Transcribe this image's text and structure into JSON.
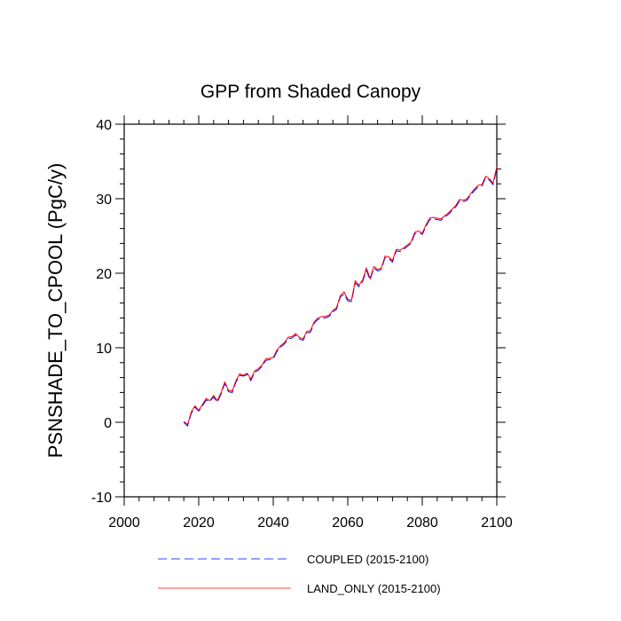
{
  "chart_data": {
    "type": "line",
    "title": "GPP from Shaded Canopy",
    "xlabel": "",
    "ylabel": "PSNSHADE_TO_CPOOL  (PgC/y)",
    "xlim": [
      2000,
      2100
    ],
    "ylim": [
      -10,
      40
    ],
    "xticks": [
      2000,
      2020,
      2040,
      2060,
      2080,
      2100
    ],
    "yticks": [
      -10,
      0,
      10,
      20,
      30,
      40
    ],
    "x": [
      2016,
      2017,
      2018,
      2019,
      2020,
      2021,
      2022,
      2023,
      2024,
      2025,
      2026,
      2027,
      2028,
      2029,
      2030,
      2031,
      2032,
      2033,
      2034,
      2035,
      2036,
      2037,
      2038,
      2039,
      2040,
      2041,
      2042,
      2043,
      2044,
      2045,
      2046,
      2047,
      2048,
      2049,
      2050,
      2051,
      2052,
      2053,
      2054,
      2055,
      2056,
      2057,
      2058,
      2059,
      2060,
      2061,
      2062,
      2063,
      2064,
      2065,
      2066,
      2067,
      2068,
      2069,
      2070,
      2071,
      2072,
      2073,
      2074,
      2075,
      2076,
      2077,
      2078,
      2079,
      2080,
      2081,
      2082,
      2083,
      2084,
      2085,
      2086,
      2087,
      2088,
      2089,
      2090,
      2091,
      2092,
      2093,
      2094,
      2095,
      2096,
      2097,
      2098,
      2099,
      2100
    ],
    "series": [
      {
        "name": "COUPLED (2015-2100)",
        "color": "#0000ff",
        "dash": "dashed",
        "values": [
          0.0,
          -0.5,
          1.2,
          2.0,
          1.5,
          2.2,
          3.0,
          2.8,
          3.4,
          2.7,
          3.8,
          5.2,
          4.1,
          4.0,
          5.4,
          6.3,
          6.2,
          6.4,
          5.6,
          6.7,
          7.0,
          7.5,
          8.3,
          8.4,
          8.5,
          9.5,
          10.1,
          10.5,
          11.2,
          11.3,
          11.7,
          11.2,
          11.0,
          12.0,
          12.1,
          13.3,
          13.8,
          14.0,
          14.0,
          14.2,
          14.8,
          15.2,
          16.8,
          17.2,
          16.3,
          16.2,
          18.7,
          18.2,
          18.9,
          20.4,
          19.1,
          20.7,
          20.3,
          20.5,
          22.1,
          22.0,
          21.5,
          23.0,
          22.9,
          23.2,
          23.6,
          24.0,
          25.3,
          25.5,
          25.2,
          26.3,
          27.2,
          27.3,
          27.2,
          27.1,
          27.5,
          27.9,
          28.4,
          28.9,
          29.7,
          29.6,
          29.8,
          30.5,
          31.1,
          31.6,
          31.7,
          32.8,
          32.5,
          31.9,
          34.0
        ]
      },
      {
        "name": "LAND_ONLY (2015-2100)",
        "color": "#ff0000",
        "dash": "solid",
        "values": [
          0.1,
          -0.3,
          1.4,
          2.2,
          1.6,
          2.4,
          3.2,
          2.9,
          3.6,
          2.9,
          4.0,
          5.4,
          4.3,
          4.2,
          5.6,
          6.5,
          6.3,
          6.6,
          5.8,
          6.9,
          7.2,
          7.7,
          8.5,
          8.6,
          8.7,
          9.7,
          10.3,
          10.7,
          11.4,
          11.5,
          11.9,
          11.4,
          11.2,
          12.2,
          12.3,
          13.5,
          14.0,
          14.2,
          14.2,
          14.4,
          15.0,
          15.4,
          17.0,
          17.5,
          16.5,
          16.4,
          19.0,
          18.4,
          19.1,
          20.7,
          19.3,
          20.9,
          20.5,
          20.7,
          22.3,
          22.2,
          21.7,
          23.2,
          23.1,
          23.4,
          23.8,
          24.2,
          25.5,
          25.7,
          25.4,
          26.5,
          27.4,
          27.5,
          27.4,
          27.3,
          27.7,
          28.1,
          28.6,
          29.1,
          29.9,
          29.8,
          30.0,
          30.7,
          31.3,
          31.8,
          31.9,
          33.0,
          32.7,
          32.1,
          34.3
        ]
      }
    ],
    "legend_position": "bottom"
  }
}
